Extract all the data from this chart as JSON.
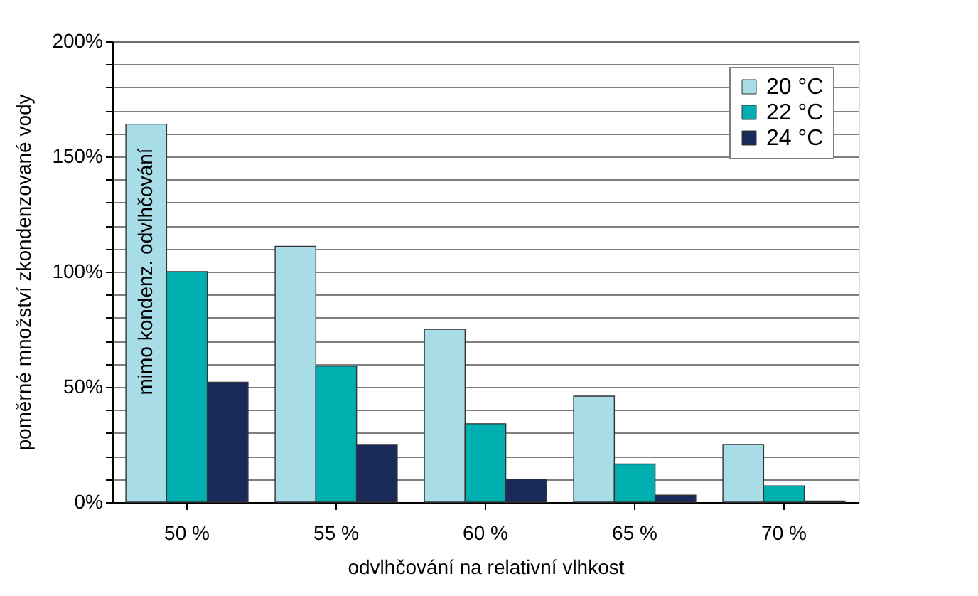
{
  "chart_data": {
    "type": "bar",
    "xlabel": "odvlhčování na relativní vlhkost",
    "ylabel": "poměrné množství zkondenzované vody",
    "categories": [
      "50 %",
      "55 %",
      "60 %",
      "65 %",
      "70 %"
    ],
    "series": [
      {
        "name": "20 °C",
        "color": "#a8dde8",
        "values": [
          164,
          111,
          75,
          46,
          25
        ]
      },
      {
        "name": "22 °C",
        "color": "#00b0b0",
        "values": [
          100,
          59,
          34,
          16.5,
          7
        ]
      },
      {
        "name": "24 °C",
        "color": "#1a2a5a",
        "values": [
          52,
          25,
          10,
          3,
          0.5
        ]
      }
    ],
    "ylim": [
      0,
      200
    ],
    "yticks": [
      {
        "value": 0,
        "label": "0%"
      },
      {
        "value": 10,
        "label": null
      },
      {
        "value": 20,
        "label": null
      },
      {
        "value": 30,
        "label": null
      },
      {
        "value": 40,
        "label": null
      },
      {
        "value": 50,
        "label": "50%"
      },
      {
        "value": 60,
        "label": null
      },
      {
        "value": 70,
        "label": null
      },
      {
        "value": 80,
        "label": null
      },
      {
        "value": 90,
        "label": null
      },
      {
        "value": 100,
        "label": "100%"
      },
      {
        "value": 110,
        "label": null
      },
      {
        "value": 120,
        "label": null
      },
      {
        "value": 130,
        "label": null
      },
      {
        "value": 140,
        "label": null
      },
      {
        "value": 150,
        "label": "150%"
      },
      {
        "value": 160,
        "label": null
      },
      {
        "value": 170,
        "label": null
      },
      {
        "value": 180,
        "label": null
      },
      {
        "value": 190,
        "label": null
      },
      {
        "value": 200,
        "label": "200%"
      }
    ],
    "annotations": [
      "mimo kondenz. odvlhčování"
    ],
    "grid": "y",
    "legend": "top right"
  }
}
